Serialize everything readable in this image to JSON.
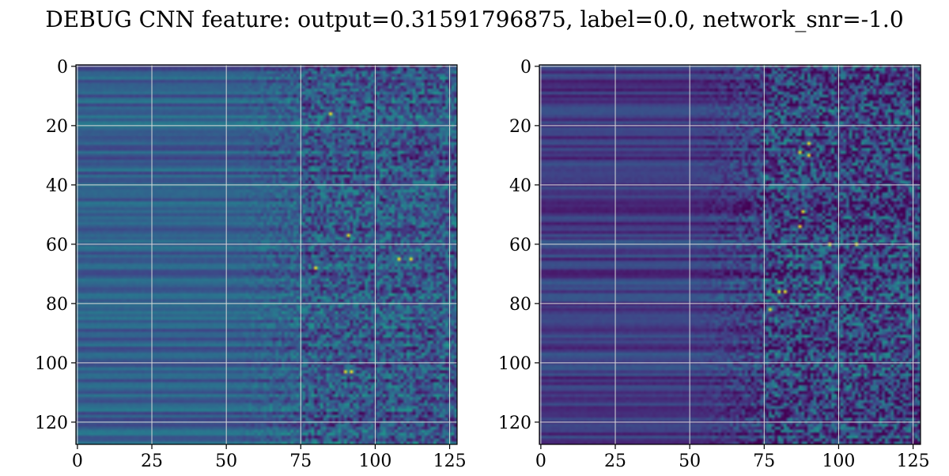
{
  "figure": {
    "title": "DEBUG CNN feature: output=0.31591796875, label=0.0, network_snr=-1.0"
  },
  "colors": {
    "colormap": "viridis",
    "grid": "#d8d8d8",
    "axis": "#000000"
  },
  "chart_data": [
    {
      "type": "heatmap",
      "title": "",
      "xlabel": "",
      "ylabel": "",
      "colormap": "viridis",
      "grid": true,
      "rows": 128,
      "cols": 128,
      "xlim": [
        0,
        127
      ],
      "ylim": [
        127,
        0
      ],
      "xticks": [
        0,
        25,
        50,
        75,
        100,
        125
      ],
      "yticks": [
        0,
        20,
        40,
        60,
        80,
        100,
        120
      ],
      "value_range": [
        0,
        1
      ],
      "pattern": {
        "smooth_cols": [
          0,
          50
        ],
        "transition_cols": [
          50,
          75
        ],
        "noisy_cols": [
          75,
          127
        ],
        "base_level": 0.3,
        "noise_level": 0.3,
        "hot_spots": [
          [
            103,
            90
          ],
          [
            103,
            92
          ],
          [
            65,
            112
          ],
          [
            65,
            108
          ],
          [
            68,
            80
          ],
          [
            16,
            85
          ],
          [
            57,
            91
          ]
        ]
      }
    },
    {
      "type": "heatmap",
      "title": "",
      "xlabel": "",
      "ylabel": "",
      "colormap": "viridis",
      "grid": true,
      "rows": 128,
      "cols": 128,
      "xlim": [
        0,
        127
      ],
      "ylim": [
        127,
        0
      ],
      "xticks": [
        0,
        25,
        50,
        75,
        100,
        125
      ],
      "yticks": [
        0,
        20,
        40,
        60,
        80,
        100,
        120
      ],
      "value_range": [
        0,
        1
      ],
      "pattern": {
        "smooth_cols": [
          0,
          50
        ],
        "transition_cols": [
          50,
          75
        ],
        "noisy_cols": [
          75,
          127
        ],
        "base_level": 0.18,
        "noise_level": 0.4,
        "hot_spots": [
          [
            29,
            87
          ],
          [
            30,
            90
          ],
          [
            76,
            80
          ],
          [
            76,
            82
          ],
          [
            82,
            77
          ],
          [
            54,
            87
          ],
          [
            60,
            106
          ],
          [
            60,
            97
          ],
          [
            49,
            88
          ],
          [
            26,
            90
          ]
        ]
      }
    }
  ]
}
